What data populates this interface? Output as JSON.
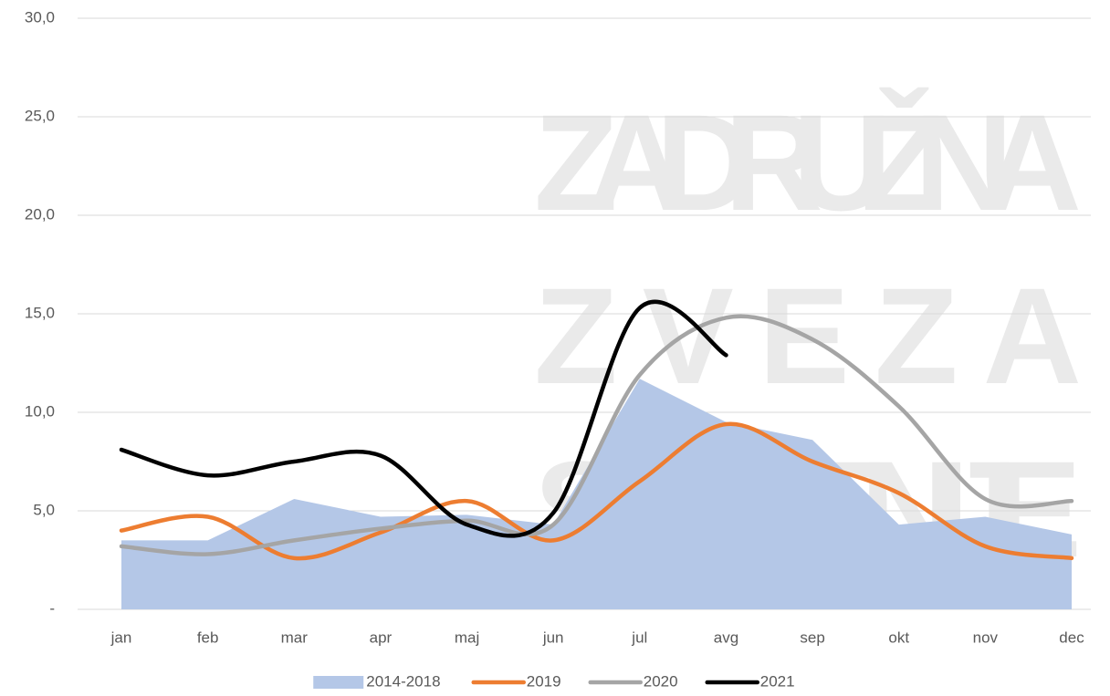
{
  "chart_data": {
    "type": "line",
    "watermark": [
      "ZADRUŽNA",
      "ZVEZA",
      "SLOVENIJE"
    ],
    "categories": [
      "jan",
      "feb",
      "mar",
      "apr",
      "maj",
      "jun",
      "jul",
      "avg",
      "sep",
      "okt",
      "nov",
      "dec"
    ],
    "series": [
      {
        "name": "2014-2018",
        "kind": "area",
        "color": "#b4c7e7",
        "values": [
          3.5,
          3.5,
          5.6,
          4.7,
          4.8,
          4.3,
          11.7,
          9.5,
          8.6,
          4.3,
          4.7,
          3.8
        ]
      },
      {
        "name": "2019",
        "kind": "line",
        "color": "#ed7d31",
        "values": [
          4.0,
          4.7,
          2.6,
          3.9,
          5.5,
          3.5,
          6.5,
          9.4,
          7.5,
          5.9,
          3.2,
          2.6
        ]
      },
      {
        "name": "2020",
        "kind": "line",
        "color": "#a5a5a5",
        "values": [
          3.2,
          2.8,
          3.5,
          4.1,
          4.5,
          4.3,
          11.9,
          14.8,
          13.7,
          10.3,
          5.6,
          5.5
        ]
      },
      {
        "name": "2021",
        "kind": "line",
        "color": "#000000",
        "values": [
          8.1,
          6.8,
          7.5,
          7.8,
          4.3,
          4.9,
          15.3,
          12.9,
          null,
          null,
          null,
          null
        ]
      }
    ],
    "ylim": [
      0,
      30
    ],
    "yticks": [
      {
        "value": 0,
        "label": "-"
      },
      {
        "value": 5,
        "label": "5,0"
      },
      {
        "value": 10,
        "label": "10,0"
      },
      {
        "value": 15,
        "label": "15,0"
      },
      {
        "value": 20,
        "label": "20,0"
      },
      {
        "value": 25,
        "label": "25,0"
      },
      {
        "value": 30,
        "label": "30,0"
      }
    ],
    "grid": true,
    "smooth": true,
    "legend": "bottom"
  }
}
